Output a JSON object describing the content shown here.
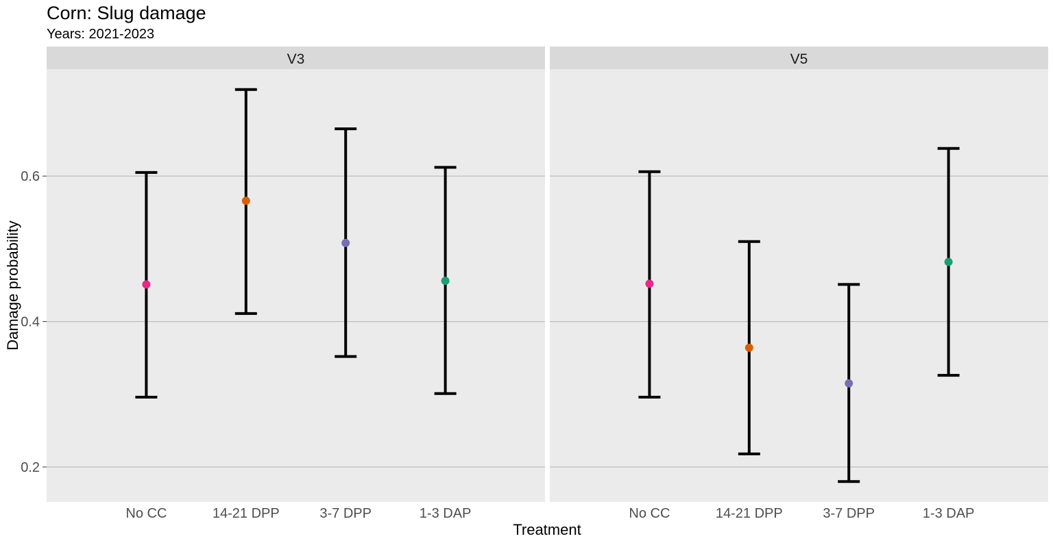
{
  "chart_data": {
    "type": "scatter",
    "title": "Corn: Slug damage",
    "subtitle": "Years: 2021-2023",
    "xlabel": "Treatment",
    "ylabel": "Damage probability",
    "categories": [
      "No CC",
      "14-21 DPP",
      "3-7 DPP",
      "1-3 DAP"
    ],
    "colors": [
      "#e7298a",
      "#d95f02",
      "#7570b3",
      "#1b9e77"
    ],
    "ylim": [
      0.152,
      0.747
    ],
    "yticks": [
      0.2,
      0.4,
      0.6
    ],
    "ytick_labels": [
      "0.2",
      "0.4",
      "0.6"
    ],
    "grid": true,
    "panels": [
      {
        "label": "V3",
        "estimate": [
          0.451,
          0.566,
          0.508,
          0.456
        ],
        "lower": [
          0.296,
          0.411,
          0.352,
          0.301
        ],
        "upper": [
          0.605,
          0.719,
          0.665,
          0.612
        ]
      },
      {
        "label": "V5",
        "estimate": [
          0.452,
          0.364,
          0.315,
          0.482
        ],
        "lower": [
          0.296,
          0.218,
          0.18,
          0.326
        ],
        "upper": [
          0.606,
          0.51,
          0.451,
          0.638
        ]
      }
    ]
  }
}
